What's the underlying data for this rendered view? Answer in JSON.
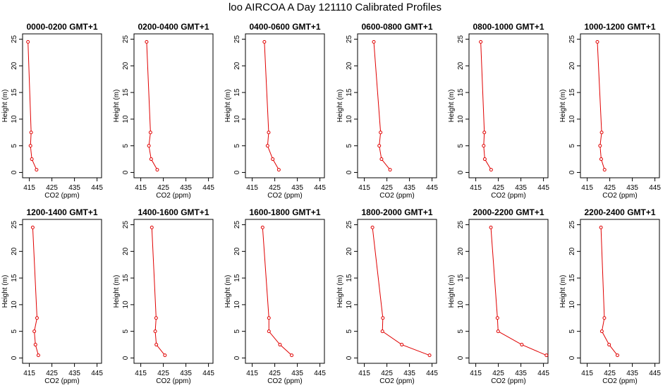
{
  "title": "loo AIRCOA A  Day 121110  Calibrated Profiles",
  "axes": {
    "xlabel": "CO2 (ppm)",
    "ylabel": "Height (m)",
    "xticks": [
      415,
      425,
      435,
      445
    ],
    "yticks": [
      0,
      5,
      10,
      15,
      20,
      25
    ]
  },
  "chart_data": [
    {
      "type": "line",
      "title": "0000-0200 GMT+1",
      "xlabel": "CO2 (ppm)",
      "ylabel": "Height (m)",
      "xlim": [
        412,
        447
      ],
      "ylim": [
        -1,
        26
      ],
      "x": [
        414.4,
        415.8,
        415.5,
        416.1,
        418.2
      ],
      "y": [
        24.5,
        7.5,
        5,
        2.5,
        0.5
      ]
    },
    {
      "type": "line",
      "title": "0200-0400 GMT+1",
      "xlabel": "CO2 (ppm)",
      "ylabel": "Height (m)",
      "xlim": [
        412,
        447
      ],
      "ylim": [
        -1,
        26
      ],
      "x": [
        417.6,
        419.3,
        418.6,
        419.6,
        422.3
      ],
      "y": [
        24.5,
        7.5,
        5,
        2.5,
        0.5
      ]
    },
    {
      "type": "line",
      "title": "0400-0600 GMT+1",
      "xlabel": "CO2 (ppm)",
      "ylabel": "Height (m)",
      "xlim": [
        412,
        447
      ],
      "ylim": [
        -1,
        26
      ],
      "x": [
        420.4,
        422.3,
        421.8,
        424.1,
        426.8
      ],
      "y": [
        24.5,
        7.5,
        5,
        2.5,
        0.5
      ]
    },
    {
      "type": "line",
      "title": "0600-0800 GMT+1",
      "xlabel": "CO2 (ppm)",
      "ylabel": "Height (m)",
      "xlim": [
        412,
        447
      ],
      "ylim": [
        -1,
        26
      ],
      "x": [
        419.2,
        422.2,
        421.6,
        422.6,
        426.4
      ],
      "y": [
        24.5,
        7.5,
        5,
        2.5,
        0.5
      ]
    },
    {
      "type": "line",
      "title": "0800-1000 GMT+1",
      "xlabel": "CO2 (ppm)",
      "ylabel": "Height (m)",
      "xlim": [
        412,
        447
      ],
      "ylim": [
        -1,
        26
      ],
      "x": [
        417.2,
        418.8,
        418.5,
        419,
        421.8
      ],
      "y": [
        24.5,
        7.5,
        5,
        2.5,
        0.5
      ]
    },
    {
      "type": "line",
      "title": "1000-1200 GMT+1",
      "xlabel": "CO2 (ppm)",
      "ylabel": "Height (m)",
      "xlim": [
        412,
        447
      ],
      "ylim": [
        -1,
        26
      ],
      "x": [
        419.5,
        421.4,
        420.7,
        421.2,
        422.7
      ],
      "y": [
        24.5,
        7.5,
        5,
        2.5,
        0.5
      ]
    },
    {
      "type": "line",
      "title": "1200-1400 GMT+1",
      "xlabel": "CO2 (ppm)",
      "ylabel": "Height (m)",
      "xlim": [
        412,
        447
      ],
      "ylim": [
        -1,
        26
      ],
      "x": [
        416.5,
        418.4,
        417.2,
        417.7,
        419
      ],
      "y": [
        24.5,
        7.5,
        5,
        2.5,
        0.5
      ]
    },
    {
      "type": "line",
      "title": "1400-1600 GMT+1",
      "xlabel": "CO2 (ppm)",
      "ylabel": "Height (m)",
      "xlim": [
        412,
        447
      ],
      "ylim": [
        -1,
        26
      ],
      "x": [
        419.9,
        421.8,
        421.4,
        421.9,
        425.7
      ],
      "y": [
        24.5,
        7.5,
        5,
        2.5,
        0.5
      ]
    },
    {
      "type": "line",
      "title": "1600-1800 GMT+1",
      "xlabel": "CO2 (ppm)",
      "ylabel": "Height (m)",
      "xlim": [
        412,
        447
      ],
      "ylim": [
        -1,
        26
      ],
      "x": [
        419.6,
        422.4,
        422.4,
        427.3,
        432.5
      ],
      "y": [
        24.5,
        7.5,
        5,
        2.5,
        0.5
      ]
    },
    {
      "type": "line",
      "title": "1800-2000 GMT+1",
      "xlabel": "CO2 (ppm)",
      "ylabel": "Height (m)",
      "xlim": [
        412,
        447
      ],
      "ylim": [
        -1,
        26
      ],
      "x": [
        418.6,
        423.2,
        423,
        431.6,
        443.9
      ],
      "y": [
        24.5,
        7.5,
        5,
        2.5,
        0.5
      ]
    },
    {
      "type": "line",
      "title": "2000-2200 GMT+1",
      "xlabel": "CO2 (ppm)",
      "ylabel": "Height (m)",
      "xlim": [
        412,
        447
      ],
      "ylim": [
        -1,
        26
      ],
      "x": [
        421.7,
        424.6,
        424.9,
        435.4,
        446.3
      ],
      "y": [
        24.5,
        7.5,
        5,
        2.5,
        0.5
      ]
    },
    {
      "type": "line",
      "title": "2200-2400 GMT+1",
      "xlabel": "CO2 (ppm)",
      "ylabel": "Height (m)",
      "xlim": [
        412,
        447
      ],
      "ylim": [
        -1,
        26
      ],
      "x": [
        421.1,
        422.6,
        421.5,
        424.7,
        428.4
      ],
      "y": [
        24.5,
        7.5,
        5,
        2.5,
        0.5
      ]
    }
  ]
}
